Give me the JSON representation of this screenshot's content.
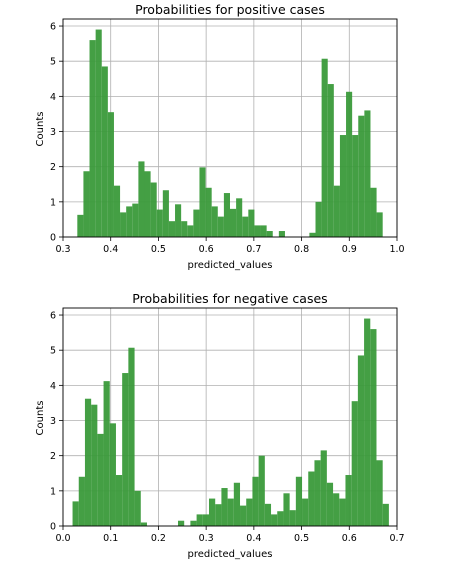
{
  "chart_data": [
    {
      "type": "histogram",
      "title": "Probabilities for positive cases",
      "xlabel": "predicted_values",
      "ylabel": "Counts",
      "xlim": [
        0.3,
        1.0
      ],
      "ylim": [
        0,
        6.2
      ],
      "xticks": [
        "0.3",
        "0.4",
        "0.5",
        "0.6",
        "0.7",
        "0.8",
        "0.9",
        "1.0"
      ],
      "yticks": [
        "0",
        "1",
        "2",
        "3",
        "4",
        "5",
        "6"
      ],
      "grid": true,
      "bar_color": "#3a9a3a",
      "bin_start": 0.33,
      "bin_width": 0.0128,
      "values": [
        0.63,
        1.87,
        5.6,
        5.9,
        4.85,
        3.55,
        1.46,
        0.7,
        0.87,
        0.95,
        2.15,
        1.87,
        1.55,
        0.78,
        1.33,
        0.45,
        0.93,
        0.45,
        0.33,
        0.78,
        1.98,
        1.4,
        0.87,
        0.58,
        1.25,
        0.8,
        1.1,
        0.58,
        0.78,
        0.33,
        0.33,
        0.17,
        0,
        0.17,
        0,
        0,
        0,
        0,
        0.12,
        1.0,
        5.07,
        4.35,
        1.46,
        2.9,
        4.13,
        2.9,
        3.45,
        3.6,
        1.4,
        0.7
      ]
    },
    {
      "type": "histogram",
      "title": "Probabilities for negative cases",
      "xlabel": "predicted_values",
      "ylabel": "Counts",
      "xlim": [
        0.0,
        0.7
      ],
      "ylim": [
        0,
        6.2
      ],
      "xticks": [
        "0.0",
        "0.1",
        "0.2",
        "0.3",
        "0.4",
        "0.5",
        "0.6",
        "0.7"
      ],
      "yticks": [
        "0",
        "1",
        "2",
        "3",
        "4",
        "5",
        "6"
      ],
      "grid": true,
      "bar_color": "#3a9a3a",
      "bin_start": 0.02,
      "bin_width": 0.013,
      "values": [
        0.7,
        1.4,
        3.62,
        3.45,
        2.62,
        4.12,
        2.92,
        1.45,
        4.35,
        5.07,
        1.0,
        0.1,
        0,
        0,
        0,
        0,
        0,
        0.15,
        0,
        0.15,
        0.33,
        0.33,
        0.78,
        0.62,
        1.08,
        0.78,
        1.23,
        0.58,
        0.78,
        1.4,
        2.0,
        0.63,
        0.33,
        0.42,
        0.93,
        0.45,
        1.4,
        0.78,
        1.55,
        1.87,
        2.15,
        1.23,
        0.93,
        0.78,
        1.45,
        3.55,
        4.85,
        5.9,
        5.6,
        1.87,
        0.63
      ]
    }
  ]
}
